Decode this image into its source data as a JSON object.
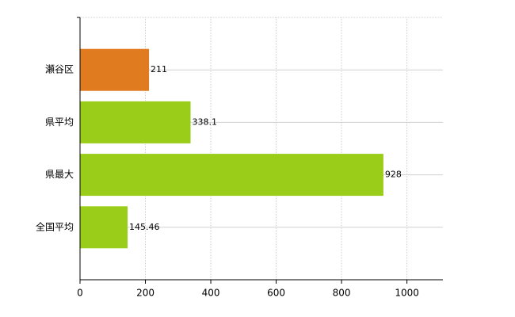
{
  "chart_data": {
    "type": "bar",
    "orientation": "horizontal",
    "categories": [
      "瀬谷区",
      "県平均",
      "県最大",
      "全国平均"
    ],
    "values": [
      211,
      338.1,
      928,
      145.46
    ],
    "colors": [
      "#e07b20",
      "#9acd1a",
      "#9acd1a",
      "#9acd1a"
    ],
    "xlim": [
      0,
      1110
    ],
    "xticks": [
      0,
      200,
      400,
      600,
      800,
      1000
    ],
    "grid": true
  }
}
